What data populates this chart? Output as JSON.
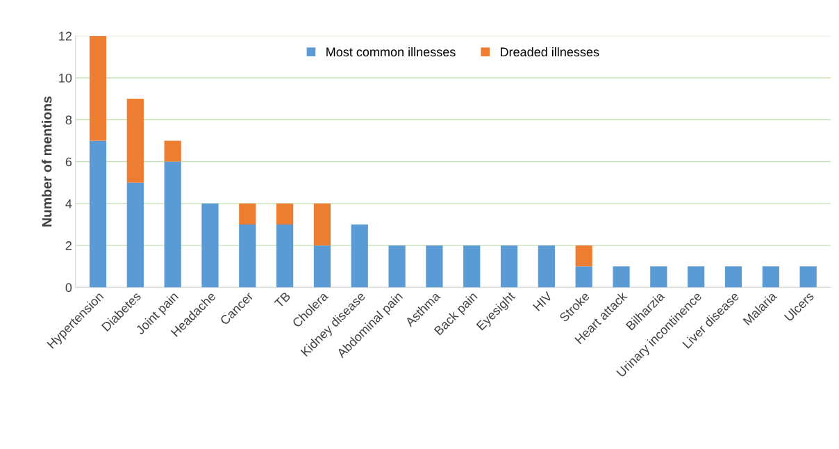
{
  "chart_data": {
    "type": "bar",
    "stacked": true,
    "ylabel": "Number of mentions",
    "categories": [
      "Hypertension",
      "Diabetes",
      "Joint pain",
      "Headache",
      "Cancer",
      "TB",
      "Cholera",
      "Kidney disease",
      "Abdominal pain",
      "Asthma",
      "Back pain",
      "Eyesight",
      "HIV",
      "Stroke",
      "Heart attack",
      "Bilharzia",
      "Urinary incontinence",
      "Liver disease",
      "Malaria",
      "Ulcers"
    ],
    "series": [
      {
        "name": "Most common illnesses",
        "color": "#5b9bd5",
        "values": [
          7,
          5,
          6,
          4,
          3,
          3,
          2,
          3,
          2,
          2,
          2,
          2,
          2,
          1,
          1,
          1,
          1,
          1,
          1,
          1
        ]
      },
      {
        "name": "Dreaded illnesses",
        "color": "#ed7d31",
        "values": [
          5,
          4,
          1,
          0,
          1,
          1,
          2,
          0,
          0,
          0,
          0,
          0,
          0,
          1,
          0,
          0,
          0,
          0,
          0,
          0
        ]
      }
    ],
    "ylim": [
      0,
      12
    ],
    "yticks": [
      0,
      2,
      4,
      6,
      8,
      10,
      12
    ],
    "grid": "y",
    "legend": "top"
  }
}
